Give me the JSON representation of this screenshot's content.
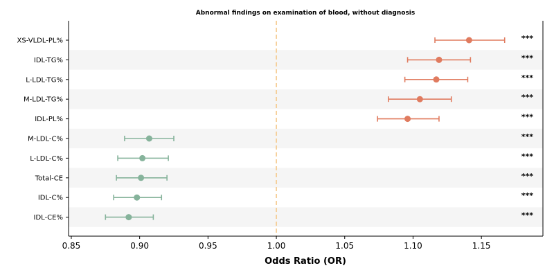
{
  "chart_data": {
    "type": "forest",
    "title": "Abnormal findings on examination of blood, without diagnosis",
    "xlabel": "Odds Ratio (OR)",
    "xlim": [
      0.848,
      1.195
    ],
    "xticks": [
      "0.85",
      "0.90",
      "0.95",
      "1.00",
      "1.05",
      "1.10",
      "1.15"
    ],
    "reference_line": 1.0,
    "colors": {
      "up": "#e07b5f",
      "down": "#86b39b",
      "reference": "#f5c98a",
      "band": "#f5f5f5"
    },
    "rows": [
      {
        "label": "XS-VLDL-PL%",
        "or": 1.141,
        "lo": 1.116,
        "hi": 1.167,
        "sig": "***",
        "direction": "up"
      },
      {
        "label": "IDL-TG%",
        "or": 1.119,
        "lo": 1.096,
        "hi": 1.142,
        "sig": "***",
        "direction": "up"
      },
      {
        "label": "L-LDL-TG%",
        "or": 1.117,
        "lo": 1.094,
        "hi": 1.14,
        "sig": "***",
        "direction": "up"
      },
      {
        "label": "M-LDL-TG%",
        "or": 1.105,
        "lo": 1.082,
        "hi": 1.128,
        "sig": "***",
        "direction": "up"
      },
      {
        "label": "IDL-PL%",
        "or": 1.096,
        "lo": 1.074,
        "hi": 1.119,
        "sig": "***",
        "direction": "up"
      },
      {
        "label": "M-LDL-C%",
        "or": 0.907,
        "lo": 0.889,
        "hi": 0.925,
        "sig": "***",
        "direction": "down"
      },
      {
        "label": "L-LDL-C%",
        "or": 0.902,
        "lo": 0.884,
        "hi": 0.921,
        "sig": "***",
        "direction": "down"
      },
      {
        "label": "Total-CE",
        "or": 0.901,
        "lo": 0.883,
        "hi": 0.92,
        "sig": "***",
        "direction": "down"
      },
      {
        "label": "IDL-C%",
        "or": 0.898,
        "lo": 0.881,
        "hi": 0.916,
        "sig": "***",
        "direction": "down"
      },
      {
        "label": "IDL-CE%",
        "or": 0.892,
        "lo": 0.875,
        "hi": 0.91,
        "sig": "***",
        "direction": "down"
      }
    ]
  }
}
